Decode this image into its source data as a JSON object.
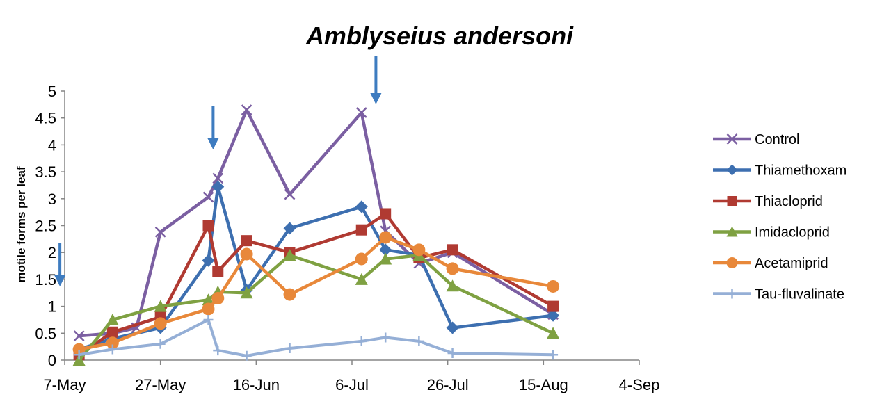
{
  "chart_data": {
    "type": "line",
    "title": "Amblyseius andersoni",
    "xlabel": "",
    "ylabel": "motile forms per leaf",
    "x_axis": {
      "type": "date",
      "range": [
        "2012-05-07",
        "2012-09-04"
      ],
      "tick_dates": [
        "2012-05-07",
        "2012-05-27",
        "2012-06-16",
        "2012-07-06",
        "2012-07-26",
        "2012-08-15",
        "2012-09-04"
      ],
      "tick_labels": [
        "7-May",
        "27-May",
        "16-Jun",
        "6-Jul",
        "26-Jul",
        "15-Aug",
        "4-Sep"
      ]
    },
    "y_axis": {
      "range": [
        0,
        5
      ],
      "ticks": [
        0,
        0.5,
        1,
        1.5,
        2,
        2.5,
        3,
        3.5,
        4,
        4.5,
        5
      ],
      "tick_labels": [
        "0",
        "0.5",
        "1",
        "1.5",
        "2",
        "2.5",
        "3",
        "3.5",
        "4",
        "4.5",
        "5"
      ]
    },
    "grid": false,
    "legend_position": "right",
    "arrows": [
      {
        "date": "2012-05-06",
        "description": "treatment application"
      },
      {
        "date": "2012-06-07",
        "description": "treatment application"
      },
      {
        "date": "2012-07-11",
        "description": "treatment application"
      }
    ],
    "series": [
      {
        "name": "Control",
        "color": "#7B5FA2",
        "marker": "x",
        "points": [
          {
            "x": "2012-05-10",
            "y": 0.45
          },
          {
            "x": "2012-05-17",
            "y": 0.5
          },
          {
            "x": "2012-05-22",
            "y": 0.6
          },
          {
            "x": "2012-05-27",
            "y": 2.38
          },
          {
            "x": "2012-06-06",
            "y": 3.03
          },
          {
            "x": "2012-06-08",
            "y": 3.38
          },
          {
            "x": "2012-06-14",
            "y": 4.65
          },
          {
            "x": "2012-06-23",
            "y": 3.08
          },
          {
            "x": "2012-07-08",
            "y": 4.6
          },
          {
            "x": "2012-07-13",
            "y": 2.4
          },
          {
            "x": "2012-07-20",
            "y": 1.8
          },
          {
            "x": "2012-07-27",
            "y": 2.0
          },
          {
            "x": "2012-08-17",
            "y": 0.85
          }
        ]
      },
      {
        "name": "Thiamethoxam",
        "color": "#3D6FB0",
        "marker": "diamond",
        "points": [
          {
            "x": "2012-05-10",
            "y": 0.2
          },
          {
            "x": "2012-05-17",
            "y": 0.4
          },
          {
            "x": "2012-05-27",
            "y": 0.6
          },
          {
            "x": "2012-06-06",
            "y": 1.85
          },
          {
            "x": "2012-06-08",
            "y": 3.22
          },
          {
            "x": "2012-06-14",
            "y": 1.3
          },
          {
            "x": "2012-06-23",
            "y": 2.45
          },
          {
            "x": "2012-07-08",
            "y": 2.85
          },
          {
            "x": "2012-07-13",
            "y": 2.05
          },
          {
            "x": "2012-07-20",
            "y": 1.95
          },
          {
            "x": "2012-07-27",
            "y": 0.6
          },
          {
            "x": "2012-08-17",
            "y": 0.83
          }
        ]
      },
      {
        "name": "Thiacloprid",
        "color": "#B03A32",
        "marker": "square",
        "points": [
          {
            "x": "2012-05-10",
            "y": 0.1
          },
          {
            "x": "2012-05-17",
            "y": 0.52
          },
          {
            "x": "2012-05-27",
            "y": 0.8
          },
          {
            "x": "2012-06-06",
            "y": 2.5
          },
          {
            "x": "2012-06-08",
            "y": 1.65
          },
          {
            "x": "2012-06-14",
            "y": 2.22
          },
          {
            "x": "2012-06-23",
            "y": 2.0
          },
          {
            "x": "2012-07-08",
            "y": 2.42
          },
          {
            "x": "2012-07-13",
            "y": 2.72
          },
          {
            "x": "2012-07-20",
            "y": 1.9
          },
          {
            "x": "2012-07-27",
            "y": 2.05
          },
          {
            "x": "2012-08-17",
            "y": 1.0
          }
        ]
      },
      {
        "name": "Imidacloprid",
        "color": "#7FA142",
        "marker": "triangle",
        "points": [
          {
            "x": "2012-05-10",
            "y": 0.0
          },
          {
            "x": "2012-05-17",
            "y": 0.75
          },
          {
            "x": "2012-05-27",
            "y": 1.0
          },
          {
            "x": "2012-06-06",
            "y": 1.12
          },
          {
            "x": "2012-06-08",
            "y": 1.27
          },
          {
            "x": "2012-06-14",
            "y": 1.25
          },
          {
            "x": "2012-06-23",
            "y": 1.95
          },
          {
            "x": "2012-07-08",
            "y": 1.5
          },
          {
            "x": "2012-07-13",
            "y": 1.88
          },
          {
            "x": "2012-07-20",
            "y": 1.95
          },
          {
            "x": "2012-07-27",
            "y": 1.38
          },
          {
            "x": "2012-08-17",
            "y": 0.5
          }
        ]
      },
      {
        "name": "Acetamiprid",
        "color": "#E8883A",
        "marker": "circle",
        "points": [
          {
            "x": "2012-05-10",
            "y": 0.2
          },
          {
            "x": "2012-05-17",
            "y": 0.32
          },
          {
            "x": "2012-05-27",
            "y": 0.68
          },
          {
            "x": "2012-06-06",
            "y": 0.95
          },
          {
            "x": "2012-06-08",
            "y": 1.15
          },
          {
            "x": "2012-06-14",
            "y": 1.97
          },
          {
            "x": "2012-06-23",
            "y": 1.22
          },
          {
            "x": "2012-07-08",
            "y": 1.88
          },
          {
            "x": "2012-07-13",
            "y": 2.28
          },
          {
            "x": "2012-07-20",
            "y": 2.05
          },
          {
            "x": "2012-07-27",
            "y": 1.7
          },
          {
            "x": "2012-08-17",
            "y": 1.37
          }
        ]
      },
      {
        "name": "Tau-fluvalinate",
        "color": "#95AFD6",
        "marker": "plus",
        "points": [
          {
            "x": "2012-05-10",
            "y": 0.1
          },
          {
            "x": "2012-05-17",
            "y": 0.2
          },
          {
            "x": "2012-05-27",
            "y": 0.3
          },
          {
            "x": "2012-06-06",
            "y": 0.75
          },
          {
            "x": "2012-06-08",
            "y": 0.18
          },
          {
            "x": "2012-06-14",
            "y": 0.08
          },
          {
            "x": "2012-06-23",
            "y": 0.22
          },
          {
            "x": "2012-07-08",
            "y": 0.35
          },
          {
            "x": "2012-07-13",
            "y": 0.42
          },
          {
            "x": "2012-07-20",
            "y": 0.35
          },
          {
            "x": "2012-07-27",
            "y": 0.13
          },
          {
            "x": "2012-08-17",
            "y": 0.1
          }
        ]
      }
    ]
  }
}
